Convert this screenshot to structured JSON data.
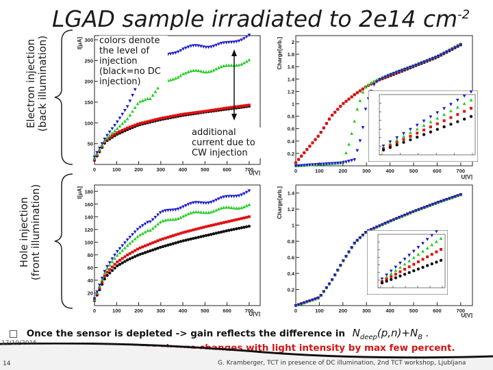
{
  "slide": {
    "title_main": "LGAD sample irradiated to 2e14 cm",
    "title_sup": "-2",
    "electron_label_1": "Electron injection",
    "electron_label_2": "(back illumination)",
    "hole_label_1": "Hole injection",
    "hole_label_2": "(front illumination)",
    "note_colors": "colors denote the level of injection (black=no DC injection)",
    "note_additional": "additional current due to CW injection",
    "bullet_1": "Once the sensor is depleted -> gain reflects the difference in",
    "bullet_1_math": "N",
    "bullet_1_sub": "deep",
    "bullet_1_rest": "(p,n)+N",
    "bullet_1_sub2": "B",
    "bullet_1_end": " .",
    "bullet_2": "At high bias voltages the charge changes with light intensity by max few percent.",
    "date": "17/10/2016",
    "page": "14",
    "credit": "G. Kramberger, TCT in presence of DC illumination, 2nd TCT workshop, Ljubljana",
    "colors": {
      "black": "#111111",
      "red": "#e01010",
      "green": "#22cc22",
      "blue": "#1a1acc",
      "accent": "#8b1a1a"
    }
  },
  "chart_data": [
    {
      "type": "scatter",
      "title": "",
      "xlabel": "U[V]",
      "ylabel": "I[μA]",
      "xlim": [
        0,
        750
      ],
      "ylim": [
        0,
        310
      ],
      "xticks": [
        0,
        100,
        200,
        300,
        400,
        500,
        600,
        700
      ],
      "yticks": [
        50,
        100,
        150,
        200,
        250,
        300
      ],
      "series": [
        {
          "color": "black",
          "x": [
            0,
            50,
            100,
            150,
            200,
            300,
            400,
            500,
            600,
            700
          ],
          "y": [
            10,
            55,
            72,
            84,
            95,
            108,
            118,
            126,
            133,
            140
          ]
        },
        {
          "color": "red",
          "x": [
            0,
            50,
            100,
            150,
            200,
            300,
            400,
            500,
            600,
            700
          ],
          "y": [
            12,
            58,
            76,
            88,
            98,
            111,
            121,
            128,
            136,
            143
          ]
        },
        {
          "color": "green",
          "x": [
            0,
            50,
            100,
            150,
            200,
            250,
            300,
            400,
            500,
            600,
            700
          ],
          "y": [
            15,
            60,
            85,
            110,
            150,
            160,
            190,
            220,
            225,
            235,
            250
          ]
        },
        {
          "color": "blue",
          "x": [
            0,
            50,
            100,
            150,
            200,
            250,
            300,
            400,
            500,
            600,
            700
          ],
          "y": [
            18,
            65,
            100,
            140,
            200,
            240,
            255,
            280,
            285,
            290,
            310
          ]
        }
      ]
    },
    {
      "type": "scatter",
      "title": "",
      "xlabel": "U[V]",
      "ylabel": "Charge[arb.]",
      "xlim": [
        0,
        750
      ],
      "ylim": [
        0,
        2.1
      ],
      "xticks": [
        0,
        100,
        200,
        300,
        400,
        500,
        600,
        700
      ],
      "yticks": [
        0.2,
        0.4,
        0.6,
        0.8,
        1,
        1.2,
        1.4,
        1.6,
        1.8,
        2
      ],
      "series": [
        {
          "color": "black",
          "x": [
            0,
            100,
            150,
            200,
            250,
            300,
            350,
            400,
            500,
            600,
            700
          ],
          "y": [
            0.05,
            0.5,
            0.8,
            1.0,
            1.15,
            1.28,
            1.38,
            1.45,
            1.6,
            1.75,
            1.95
          ]
        },
        {
          "color": "red",
          "x": [
            0,
            100,
            150,
            200,
            250,
            300,
            350,
            400,
            500,
            600,
            700
          ],
          "y": [
            0.05,
            0.5,
            0.8,
            1.0,
            1.15,
            1.28,
            1.38,
            1.46,
            1.61,
            1.76,
            1.96
          ]
        },
        {
          "color": "green",
          "x": [
            0,
            200,
            230,
            260,
            290,
            320,
            350,
            400,
            500,
            600,
            700
          ],
          "y": [
            0.0,
            0.05,
            0.4,
            0.9,
            1.25,
            1.34,
            1.4,
            1.48,
            1.62,
            1.77,
            1.97
          ]
        },
        {
          "color": "blue",
          "x": [
            0,
            200,
            250,
            280,
            300,
            330,
            350,
            400,
            500,
            600,
            700
          ],
          "y": [
            0.0,
            0.05,
            0.1,
            0.5,
            1.0,
            1.3,
            1.38,
            1.47,
            1.61,
            1.76,
            1.95
          ]
        }
      ]
    },
    {
      "type": "scatter",
      "title": "",
      "xlabel": "U[V]",
      "ylabel": "I[μA]",
      "xlim": [
        0,
        750
      ],
      "ylim": [
        0,
        190
      ],
      "xticks": [
        0,
        100,
        200,
        300,
        400,
        500,
        600,
        700
      ],
      "yticks": [
        20,
        40,
        60,
        80,
        100,
        120,
        140,
        160,
        180
      ],
      "series": [
        {
          "color": "black",
          "x": [
            0,
            50,
            100,
            150,
            200,
            300,
            400,
            500,
            600,
            700
          ],
          "y": [
            8,
            45,
            62,
            72,
            80,
            92,
            102,
            110,
            118,
            125
          ]
        },
        {
          "color": "red",
          "x": [
            0,
            50,
            100,
            150,
            200,
            300,
            400,
            500,
            600,
            700
          ],
          "y": [
            9,
            50,
            68,
            80,
            90,
            104,
            115,
            124,
            132,
            140
          ]
        },
        {
          "color": "green",
          "x": [
            0,
            50,
            100,
            150,
            200,
            300,
            400,
            500,
            600,
            700
          ],
          "y": [
            10,
            55,
            78,
            95,
            110,
            130,
            142,
            148,
            153,
            158
          ]
        },
        {
          "color": "blue",
          "x": [
            0,
            50,
            100,
            150,
            200,
            300,
            400,
            500,
            600,
            700
          ],
          "y": [
            11,
            58,
            84,
            104,
            122,
            145,
            157,
            163,
            170,
            180
          ]
        }
      ]
    },
    {
      "type": "scatter",
      "title": "",
      "xlabel": "U[V]",
      "ylabel": "Charge[arb.]",
      "xlim": [
        0,
        750
      ],
      "ylim": [
        0,
        1.5
      ],
      "xticks": [
        0,
        100,
        200,
        300,
        400,
        500,
        600,
        700
      ],
      "yticks": [
        0.2,
        0.4,
        0.6,
        0.8,
        1,
        1.2,
        1.4
      ],
      "series": [
        {
          "color": "black",
          "x": [
            0,
            100,
            150,
            200,
            250,
            300,
            400,
            500,
            600,
            700
          ],
          "y": [
            0.0,
            0.1,
            0.3,
            0.55,
            0.78,
            0.92,
            1.05,
            1.17,
            1.28,
            1.38
          ]
        },
        {
          "color": "red",
          "x": [
            0,
            100,
            150,
            200,
            250,
            300,
            400,
            500,
            600,
            700
          ],
          "y": [
            0.0,
            0.1,
            0.3,
            0.55,
            0.78,
            0.92,
            1.05,
            1.17,
            1.28,
            1.38
          ]
        },
        {
          "color": "green",
          "x": [
            0,
            100,
            150,
            200,
            250,
            300,
            400,
            500,
            600,
            700
          ],
          "y": [
            0.0,
            0.1,
            0.3,
            0.55,
            0.78,
            0.92,
            1.05,
            1.17,
            1.28,
            1.38
          ]
        },
        {
          "color": "blue",
          "x": [
            0,
            100,
            150,
            200,
            250,
            300,
            400,
            500,
            600,
            700
          ],
          "y": [
            0.0,
            0.1,
            0.3,
            0.55,
            0.78,
            0.92,
            1.05,
            1.17,
            1.28,
            1.38
          ]
        }
      ]
    }
  ]
}
